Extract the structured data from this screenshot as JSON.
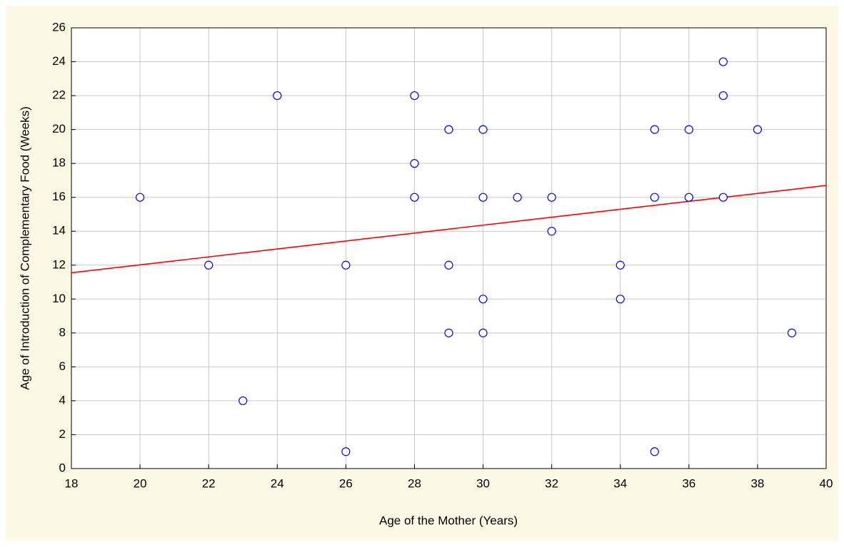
{
  "chart_data": {
    "type": "scatter",
    "x": [
      20,
      22,
      23,
      24,
      26,
      26,
      28,
      28,
      28,
      29,
      29,
      29,
      30,
      30,
      30,
      30,
      31,
      32,
      32,
      34,
      34,
      35,
      35,
      35,
      36,
      36,
      37,
      37,
      37,
      38,
      39
    ],
    "values": [
      16,
      12,
      4,
      22,
      12,
      1,
      22,
      18,
      16,
      20,
      12,
      8,
      20,
      16,
      10,
      8,
      16,
      16,
      14,
      12,
      10,
      20,
      16,
      1,
      20,
      16,
      24,
      22,
      16,
      20,
      8
    ],
    "color": "#0000ff",
    "trendline": {
      "x": [
        18,
        40
      ],
      "values": [
        11.55,
        16.7
      ],
      "color": "#ff0000"
    },
    "x_label": "Age of the Mother (Years)",
    "y_label": "Age of Introduction of Complementary Food (Weeks)",
    "xlim": [
      18,
      40
    ],
    "xticks": [
      18,
      20,
      22,
      24,
      26,
      28,
      30,
      32,
      34,
      36,
      38,
      40
    ],
    "ylim": [
      0,
      26
    ],
    "yticks": [
      0,
      2,
      4,
      6,
      8,
      10,
      12,
      14,
      16,
      18,
      20,
      22,
      24,
      26
    ],
    "grid": true
  }
}
